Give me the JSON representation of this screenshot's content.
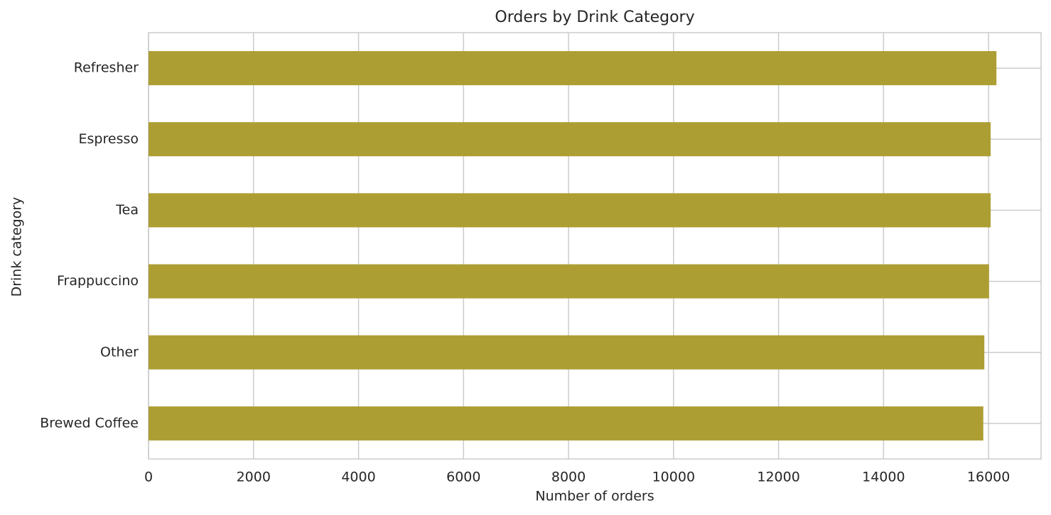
{
  "chart_data": {
    "type": "barh",
    "title": "Orders by Drink Category",
    "x_label": "Number of orders",
    "y_label": "Drink category",
    "categories": [
      "Refresher",
      "Espresso",
      "Tea",
      "Frappuccino",
      "Other",
      "Brewed Coffee"
    ],
    "values": [
      16150,
      16040,
      16040,
      16010,
      15920,
      15900
    ],
    "color": "#ad9e33",
    "xlim": [
      0,
      17000
    ],
    "xticks": [
      0,
      2000,
      4000,
      6000,
      8000,
      10000,
      12000,
      14000,
      16000
    ],
    "grid": true
  }
}
